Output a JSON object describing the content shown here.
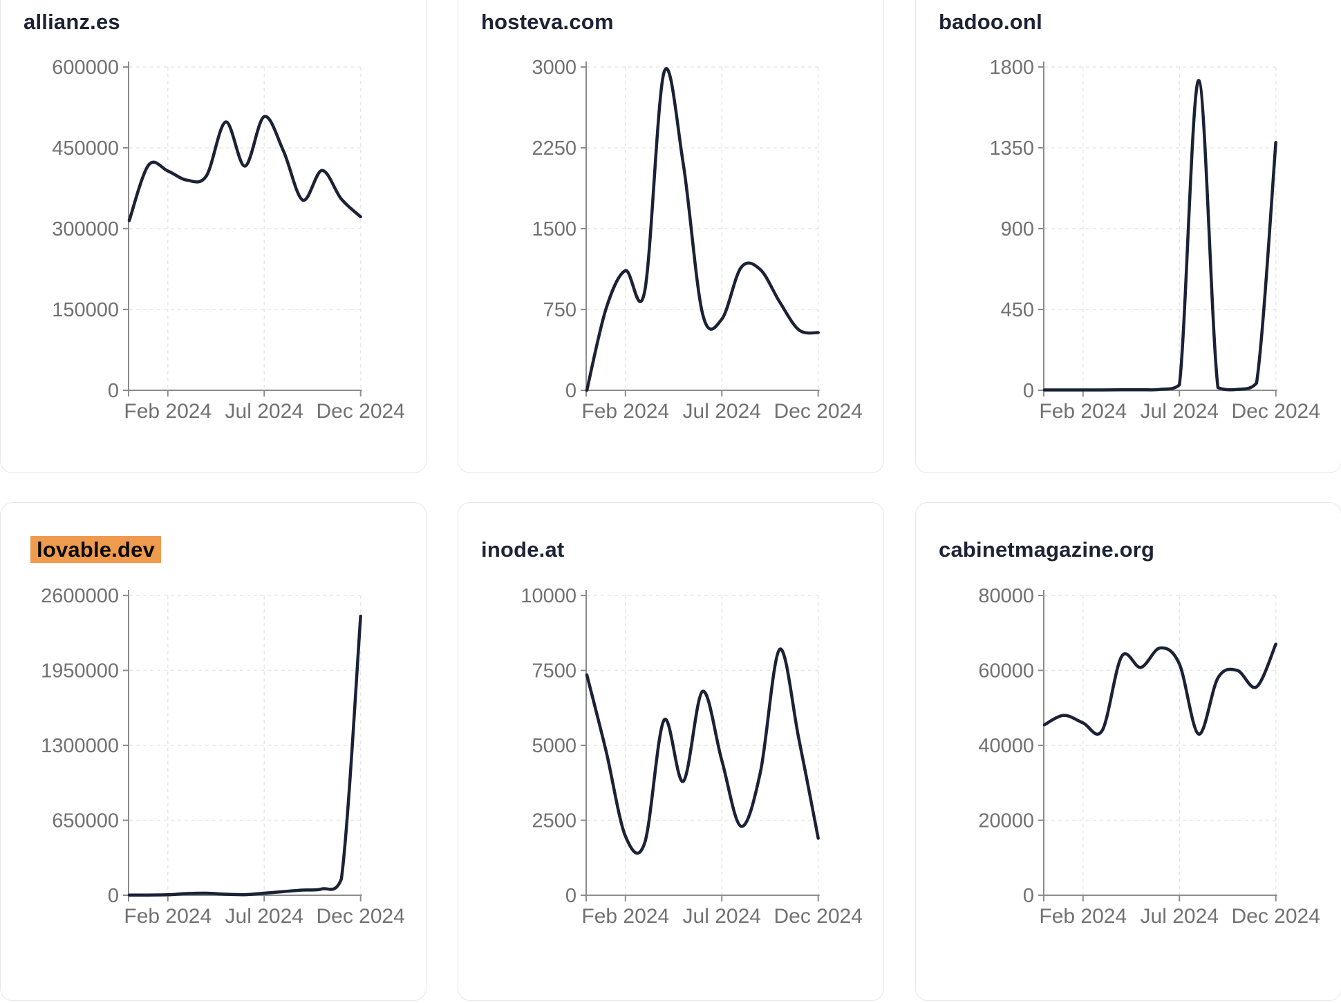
{
  "style": {
    "page_background": "#ffffff",
    "card_background": "#ffffff",
    "card_border": "#e6e7e9",
    "title_color": "#1d2335",
    "highlight_background": "#ee9b4e",
    "highlight_text": "#0a0a0a",
    "line_color": "#1b2236",
    "axis_color": "#8c8c8c",
    "tick_label_color": "#717171",
    "grid_color": "#e7e7e7"
  },
  "chart_data": [
    {
      "type": "line",
      "title": "allianz.es",
      "highlighted": false,
      "x": [
        "Dec 2023",
        "Jan 2024",
        "Feb 2024",
        "Mar 2024",
        "Apr 2024",
        "May 2024",
        "Jun 2024",
        "Jul 2024",
        "Aug 2024",
        "Sep 2024",
        "Oct 2024",
        "Nov 2024",
        "Dec 2024"
      ],
      "values": [
        315000,
        418000,
        407000,
        390000,
        398000,
        498000,
        416000,
        508000,
        444000,
        353000,
        408000,
        355000,
        322000
      ],
      "ylim": [
        0,
        600000
      ],
      "y_ticks": [
        0,
        150000,
        300000,
        450000,
        600000
      ],
      "x_tick_labels": [
        "Feb 2024",
        "Jul 2024",
        "Dec 2024"
      ],
      "grid": true,
      "legend": "none"
    },
    {
      "type": "line",
      "title": "hosteva.com",
      "highlighted": false,
      "x": [
        "Dec 2023",
        "Jan 2024",
        "Feb 2024",
        "Mar 2024",
        "Apr 2024",
        "May 2024",
        "Jun 2024",
        "Jul 2024",
        "Aug 2024",
        "Sep 2024",
        "Oct 2024",
        "Nov 2024",
        "Dec 2024"
      ],
      "values": [
        0,
        760,
        1110,
        920,
        2950,
        2100,
        710,
        660,
        1140,
        1120,
        820,
        560,
        535
      ],
      "ylim": [
        0,
        3000
      ],
      "y_ticks": [
        0,
        750,
        1500,
        2250,
        3000
      ],
      "x_tick_labels": [
        "Feb 2024",
        "Jul 2024",
        "Dec 2024"
      ],
      "grid": true,
      "legend": "none"
    },
    {
      "type": "line",
      "title": "badoo.onl",
      "highlighted": false,
      "x": [
        "Dec 2023",
        "Jan 2024",
        "Feb 2024",
        "Mar 2024",
        "Apr 2024",
        "May 2024",
        "Jun 2024",
        "Jul 2024",
        "Aug 2024",
        "Sep 2024",
        "Oct 2024",
        "Nov 2024",
        "Dec 2024"
      ],
      "values": [
        2,
        2,
        2,
        2,
        3,
        3,
        5,
        30,
        1725,
        15,
        5,
        40,
        1380
      ],
      "ylim": [
        0,
        1800
      ],
      "y_ticks": [
        0,
        450,
        900,
        1350,
        1800
      ],
      "x_tick_labels": [
        "Feb 2024",
        "Jul 2024",
        "Dec 2024"
      ],
      "grid": true,
      "legend": "none"
    },
    {
      "type": "line",
      "title": "lovable.dev",
      "highlighted": true,
      "x": [
        "Dec 2023",
        "Jan 2024",
        "Feb 2024",
        "Mar 2024",
        "Apr 2024",
        "May 2024",
        "Jun 2024",
        "Jul 2024",
        "Aug 2024",
        "Sep 2024",
        "Oct 2024",
        "Nov 2024",
        "Dec 2024"
      ],
      "values": [
        2000,
        2000,
        4000,
        15000,
        18000,
        9000,
        5000,
        18000,
        32000,
        45000,
        55000,
        140000,
        2420000
      ],
      "ylim": [
        0,
        2600000
      ],
      "y_ticks": [
        0,
        650000,
        1300000,
        1950000,
        2600000
      ],
      "x_tick_labels": [
        "Feb 2024",
        "Jul 2024",
        "Dec 2024"
      ],
      "grid": true,
      "legend": "none"
    },
    {
      "type": "line",
      "title": "inode.at",
      "highlighted": false,
      "x": [
        "Dec 2023",
        "Jan 2024",
        "Feb 2024",
        "Mar 2024",
        "Apr 2024",
        "May 2024",
        "Jun 2024",
        "Jul 2024",
        "Aug 2024",
        "Sep 2024",
        "Oct 2024",
        "Nov 2024",
        "Dec 2024"
      ],
      "values": [
        7350,
        4800,
        1970,
        1750,
        5840,
        3800,
        6800,
        4500,
        2300,
        4100,
        8200,
        5200,
        1900
      ],
      "ylim": [
        0,
        10000
      ],
      "y_ticks": [
        0,
        2500,
        5000,
        7500,
        10000
      ],
      "x_tick_labels": [
        "Feb 2024",
        "Jul 2024",
        "Dec 2024"
      ],
      "grid": true,
      "legend": "none"
    },
    {
      "type": "line",
      "title": "cabinetmagazine.org",
      "highlighted": false,
      "x": [
        "Dec 2023",
        "Jan 2024",
        "Feb 2024",
        "Mar 2024",
        "Apr 2024",
        "May 2024",
        "Jun 2024",
        "Jul 2024",
        "Aug 2024",
        "Sep 2024",
        "Oct 2024",
        "Nov 2024",
        "Dec 2024"
      ],
      "values": [
        45500,
        48000,
        46000,
        44000,
        63700,
        60800,
        66000,
        61700,
        43000,
        58000,
        60000,
        55600,
        67000
      ],
      "ylim": [
        0,
        80000
      ],
      "y_ticks": [
        0,
        20000,
        40000,
        60000,
        80000
      ],
      "x_tick_labels": [
        "Feb 2024",
        "Jul 2024",
        "Dec 2024"
      ],
      "grid": true,
      "legend": "none"
    }
  ]
}
